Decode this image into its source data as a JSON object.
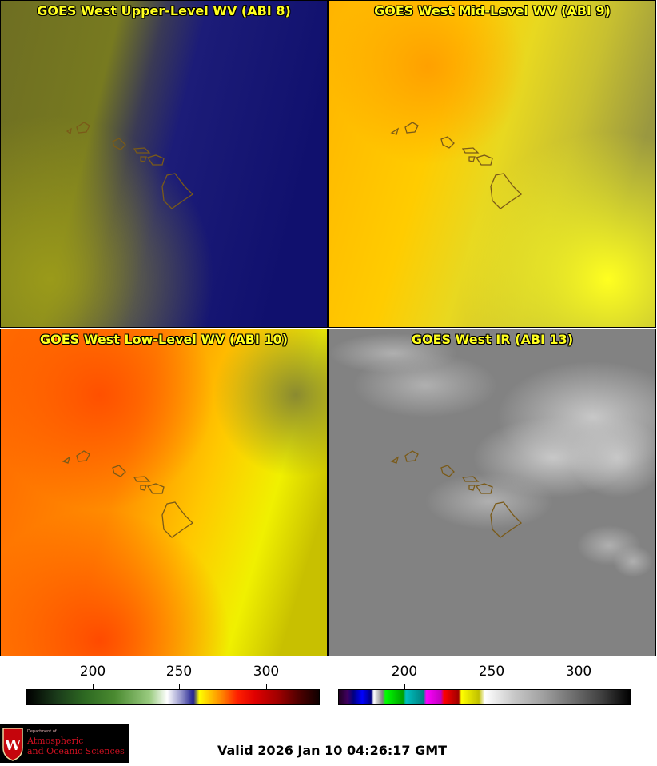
{
  "panels": [
    {
      "title": "GOES West Upper-Level WV (ABI 8)"
    },
    {
      "title": "GOES West Mid-Level WV (ABI 9)"
    },
    {
      "title": "GOES West Low-Level WV (ABI 10)"
    },
    {
      "title": "GOES West IR (ABI 13)"
    }
  ],
  "colorbar_left": {
    "ticks": [
      "200",
      "250",
      "300"
    ]
  },
  "colorbar_right": {
    "ticks": [
      "200",
      "250",
      "300"
    ]
  },
  "logo": {
    "line1": "Department of",
    "line2": "Atmospheric",
    "line3": "and Oceanic Sciences"
  },
  "valid_text": "Valid 2026 Jan 10 04:26:17 GMT",
  "colors": {
    "title_text": "#ffff1e",
    "outline": "#7a5a18"
  }
}
